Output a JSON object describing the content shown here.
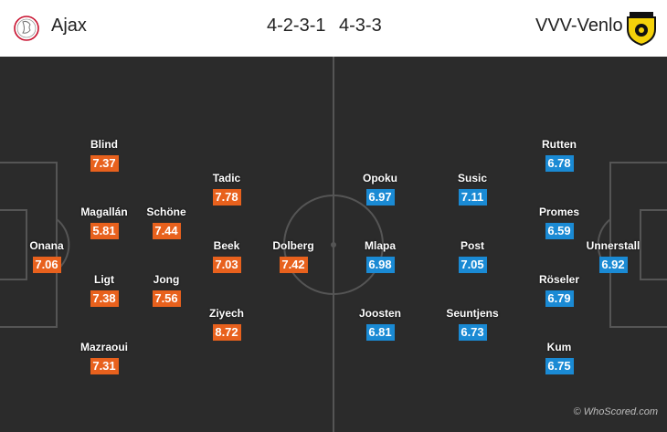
{
  "home": {
    "name": "Ajax",
    "formation": "4-2-3-1",
    "logo_icon": "ajax-crest-icon",
    "color": "#e8611d",
    "players": [
      {
        "name": "Onana",
        "rating": "7.06"
      },
      {
        "name": "Blind",
        "rating": "7.37"
      },
      {
        "name": "Magallán",
        "rating": "5.81"
      },
      {
        "name": "Ligt",
        "rating": "7.38"
      },
      {
        "name": "Mazraoui",
        "rating": "7.31"
      },
      {
        "name": "Schöne",
        "rating": "7.44"
      },
      {
        "name": "Jong",
        "rating": "7.56"
      },
      {
        "name": "Tadic",
        "rating": "7.78"
      },
      {
        "name": "Beek",
        "rating": "7.03"
      },
      {
        "name": "Ziyech",
        "rating": "8.72"
      },
      {
        "name": "Dolberg",
        "rating": "7.42"
      }
    ]
  },
  "away": {
    "name": "VVV-Venlo",
    "formation": "4-3-3",
    "logo_icon": "vvv-venlo-crest-icon",
    "color": "#1a8ad4",
    "players": [
      {
        "name": "Unnerstall",
        "rating": "6.92"
      },
      {
        "name": "Rutten",
        "rating": "6.78"
      },
      {
        "name": "Promes",
        "rating": "6.59"
      },
      {
        "name": "Röseler",
        "rating": "6.79"
      },
      {
        "name": "Kum",
        "rating": "6.75"
      },
      {
        "name": "Susic",
        "rating": "7.11"
      },
      {
        "name": "Post",
        "rating": "7.05"
      },
      {
        "name": "Seuntjens",
        "rating": "6.73"
      },
      {
        "name": "Opoku",
        "rating": "6.97"
      },
      {
        "name": "Mlapa",
        "rating": "6.98"
      },
      {
        "name": "Joosten",
        "rating": "6.81"
      }
    ]
  },
  "watermark": "© WhoScored.com"
}
